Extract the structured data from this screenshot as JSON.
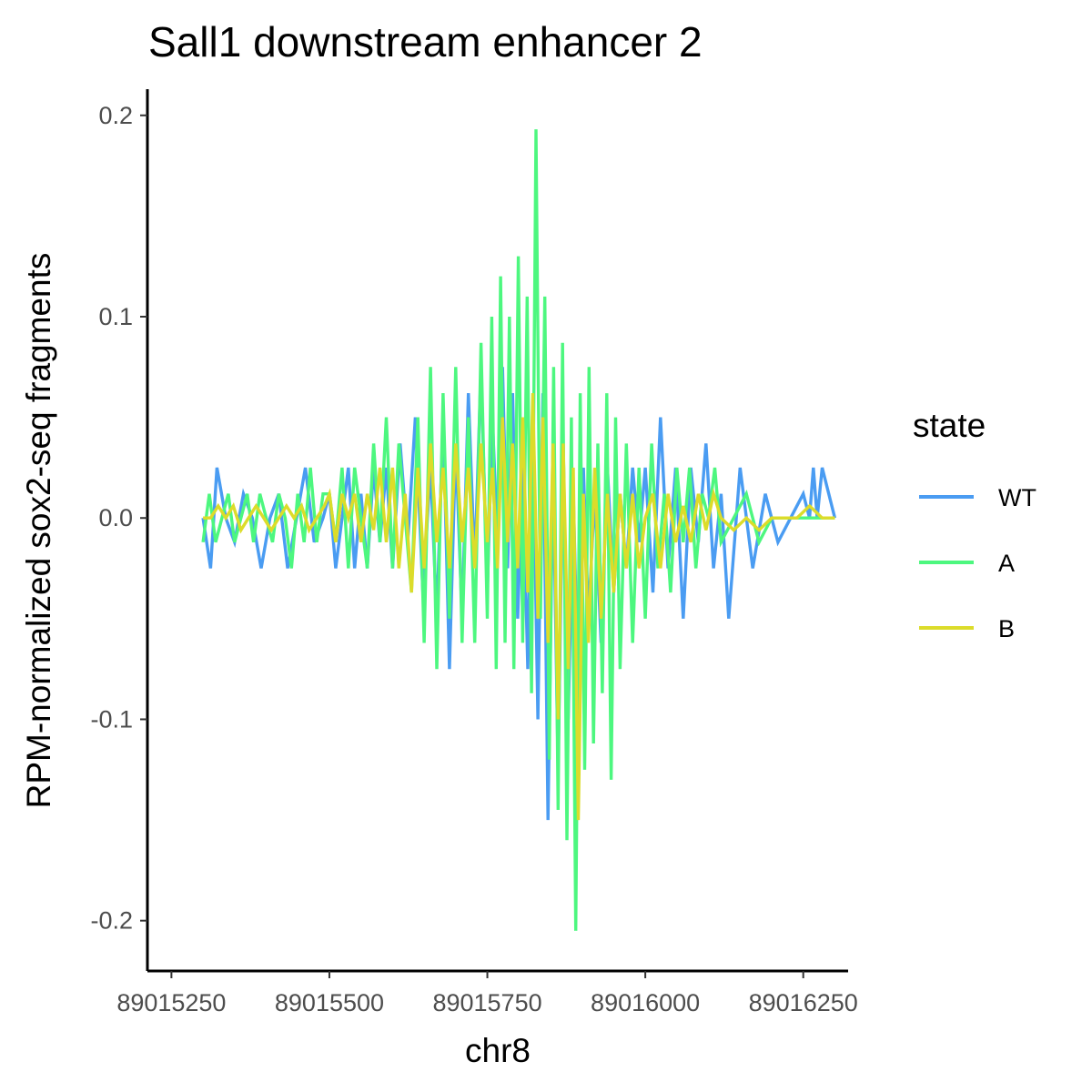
{
  "chart_data": {
    "type": "line",
    "title": "Sall1 downstream enhancer 2",
    "xlabel": "chr8",
    "ylabel": "RPM-normalized sox2-seq fragments",
    "xlim": [
      89015212,
      89016321
    ],
    "ylim": [
      -0.225,
      0.213
    ],
    "xticks": [
      89015250,
      89015500,
      89015750,
      89016000,
      89016250
    ],
    "xtick_labels": [
      "89015250",
      "89015500",
      "89015750",
      "89016000",
      "89016250"
    ],
    "yticks": [
      -0.2,
      -0.1,
      0.0,
      0.1,
      0.2
    ],
    "ytick_labels": [
      "-0.2",
      "-0.1",
      "0.0",
      "0.1",
      "0.2"
    ],
    "grid": false,
    "legend": {
      "title": "state",
      "position": "right"
    },
    "series_style": [
      {
        "name": "WT",
        "color": "#4a9cf2"
      },
      {
        "name": "A",
        "color": "#4df77f"
      },
      {
        "name": "B",
        "color": "#dcdc2a"
      }
    ],
    "series": [
      {
        "name": "WT",
        "x": [
          89015300,
          89015312,
          89015322,
          89015336,
          89015350,
          89015364,
          89015378,
          89015392,
          89015406,
          89015420,
          89015434,
          89015448,
          89015462,
          89015476,
          89015490,
          89015500,
          89015510,
          89015520,
          89015530,
          89015540,
          89015550,
          89015560,
          89015570,
          89015580,
          89015590,
          89015600,
          89015612,
          89015624,
          89015636,
          89015648,
          89015660,
          89015670,
          89015680,
          89015690,
          89015700,
          89015710,
          89015720,
          89015730,
          89015740,
          89015750,
          89015758,
          89015766,
          89015774,
          89015782,
          89015790,
          89015798,
          89015806,
          89015814,
          89015822,
          89015830,
          89015838,
          89015846,
          89015854,
          89015862,
          89015870,
          89015878,
          89015886,
          89015894,
          89015902,
          89015910,
          89015920,
          89015930,
          89015940,
          89015950,
          89015960,
          89015970,
          89015980,
          89015990,
          89016000,
          89016012,
          89016024,
          89016036,
          89016048,
          89016060,
          89016072,
          89016084,
          89016096,
          89016108,
          89016120,
          89016132,
          89016150,
          89016170,
          89016190,
          89016210,
          89016230,
          89016250,
          89016260,
          89016266,
          89016272,
          89016280,
          89016300
        ],
        "y": [
          0.0,
          -0.025,
          0.025,
          0.0,
          -0.012,
          0.012,
          0.0,
          -0.025,
          0.0,
          0.012,
          -0.025,
          0.0,
          0.025,
          -0.012,
          0.0,
          0.012,
          -0.025,
          0.0,
          0.025,
          -0.025,
          0.012,
          -0.025,
          0.025,
          -0.012,
          0.025,
          -0.025,
          0.037,
          -0.012,
          0.05,
          -0.037,
          0.025,
          -0.05,
          0.05,
          -0.075,
          0.037,
          -0.05,
          0.062,
          -0.025,
          0.075,
          -0.037,
          0.05,
          -0.012,
          0.075,
          -0.025,
          0.062,
          -0.05,
          0.025,
          -0.075,
          0.05,
          -0.1,
          0.062,
          -0.15,
          0.025,
          -0.125,
          0.037,
          -0.1,
          0.012,
          -0.087,
          0.025,
          -0.05,
          0.012,
          -0.062,
          0.025,
          -0.037,
          0.012,
          -0.025,
          0.025,
          -0.012,
          0.025,
          -0.037,
          0.05,
          -0.025,
          0.025,
          -0.05,
          0.025,
          -0.012,
          0.037,
          -0.025,
          0.012,
          -0.05,
          0.025,
          -0.025,
          0.012,
          -0.012,
          0.0,
          0.012,
          0.0,
          0.025,
          0.0,
          0.025,
          0.0
        ]
      },
      {
        "name": "A",
        "x": [
          89015300,
          89015310,
          89015320,
          89015330,
          89015340,
          89015350,
          89015360,
          89015370,
          89015380,
          89015390,
          89015400,
          89015410,
          89015420,
          89015430,
          89015440,
          89015450,
          89015460,
          89015470,
          89015480,
          89015490,
          89015500,
          89015510,
          89015520,
          89015530,
          89015540,
          89015550,
          89015560,
          89015570,
          89015580,
          89015590,
          89015600,
          89015610,
          89015620,
          89015630,
          89015640,
          89015650,
          89015660,
          89015670,
          89015680,
          89015690,
          89015700,
          89015710,
          89015720,
          89015730,
          89015740,
          89015750,
          89015757,
          89015764,
          89015771,
          89015778,
          89015785,
          89015792,
          89015799,
          89015806,
          89015813,
          89015820,
          89015827,
          89015834,
          89015841,
          89015848,
          89015855,
          89015862,
          89015869,
          89015876,
          89015883,
          89015890,
          89015897,
          89015904,
          89015911,
          89015918,
          89015925,
          89015932,
          89015939,
          89015946,
          89015953,
          89015960,
          89015970,
          89015980,
          89015990,
          89016000,
          89016010,
          89016020,
          89016030,
          89016040,
          89016050,
          89016060,
          89016070,
          89016080,
          89016090,
          89016100,
          89016110,
          89016120,
          89016140,
          89016160,
          89016180,
          89016200,
          89016220,
          89016240,
          89016260,
          89016280,
          89016300
        ],
        "y": [
          -0.012,
          0.012,
          -0.012,
          0.0,
          0.012,
          -0.012,
          0.0,
          0.012,
          -0.012,
          0.012,
          0.0,
          -0.012,
          0.012,
          0.0,
          -0.025,
          0.012,
          -0.012,
          0.025,
          -0.012,
          0.012,
          0.012,
          -0.012,
          0.025,
          -0.025,
          0.025,
          0.0,
          -0.025,
          0.037,
          -0.012,
          0.05,
          -0.025,
          0.037,
          0.0,
          -0.037,
          0.05,
          -0.062,
          0.075,
          -0.075,
          0.062,
          -0.05,
          0.075,
          -0.062,
          0.05,
          -0.062,
          0.087,
          -0.05,
          0.1,
          -0.075,
          0.12,
          -0.062,
          0.1,
          -0.075,
          0.13,
          -0.062,
          0.11,
          -0.087,
          0.193,
          -0.05,
          0.11,
          -0.12,
          0.075,
          -0.145,
          0.087,
          -0.16,
          0.05,
          -0.205,
          0.062,
          -0.125,
          0.075,
          -0.112,
          0.037,
          -0.087,
          0.062,
          -0.13,
          0.05,
          -0.075,
          0.037,
          -0.062,
          0.025,
          -0.05,
          0.037,
          -0.025,
          0.012,
          -0.037,
          0.025,
          -0.012,
          0.025,
          -0.025,
          0.012,
          0.0,
          0.025,
          -0.012,
          0.0,
          0.012,
          -0.012,
          0.0,
          0.0,
          0.0,
          0.0,
          0.0,
          0.0
        ]
      },
      {
        "name": "B",
        "x": [
          89015300,
          89015312,
          89015324,
          89015336,
          89015348,
          89015360,
          89015372,
          89015384,
          89015396,
          89015408,
          89015420,
          89015432,
          89015444,
          89015456,
          89015468,
          89015480,
          89015492,
          89015500,
          89015510,
          89015520,
          89015530,
          89015540,
          89015550,
          89015560,
          89015570,
          89015580,
          89015590,
          89015600,
          89015610,
          89015620,
          89015630,
          89015640,
          89015650,
          89015660,
          89015670,
          89015680,
          89015690,
          89015700,
          89015710,
          89015720,
          89015730,
          89015740,
          89015750,
          89015758,
          89015766,
          89015774,
          89015782,
          89015790,
          89015798,
          89015806,
          89015814,
          89015822,
          89015830,
          89015838,
          89015846,
          89015854,
          89015862,
          89015870,
          89015878,
          89015886,
          89015894,
          89015902,
          89015910,
          89015920,
          89015930,
          89015940,
          89015950,
          89015960,
          89015970,
          89015980,
          89015990,
          89016000,
          89016012,
          89016024,
          89016036,
          89016048,
          89016060,
          89016072,
          89016084,
          89016096,
          89016108,
          89016120,
          89016140,
          89016160,
          89016180,
          89016200,
          89016220,
          89016240,
          89016260,
          89016280,
          89016300
        ],
        "y": [
          0.0,
          0.0,
          0.006,
          0.0,
          0.006,
          -0.006,
          0.0,
          0.006,
          0.0,
          -0.006,
          0.0,
          0.006,
          0.0,
          0.006,
          -0.006,
          0.0,
          0.006,
          0.012,
          -0.012,
          0.012,
          0.0,
          0.012,
          -0.012,
          0.012,
          -0.006,
          0.025,
          -0.012,
          0.025,
          -0.025,
          0.012,
          -0.037,
          0.025,
          -0.025,
          0.037,
          -0.012,
          0.025,
          -0.025,
          0.037,
          -0.012,
          0.025,
          -0.025,
          0.037,
          -0.012,
          0.025,
          -0.025,
          0.05,
          -0.012,
          0.037,
          -0.025,
          0.05,
          -0.037,
          0.062,
          -0.05,
          0.05,
          -0.062,
          0.037,
          -0.1,
          0.037,
          -0.075,
          0.025,
          -0.15,
          0.012,
          -0.062,
          0.025,
          -0.05,
          0.012,
          -0.037,
          0.012,
          -0.025,
          0.012,
          -0.025,
          0.0,
          0.012,
          -0.025,
          0.012,
          -0.012,
          0.006,
          -0.012,
          0.012,
          -0.006,
          0.012,
          0.0,
          -0.006,
          0.0,
          -0.006,
          0.0,
          0.0,
          0.0,
          0.006,
          0.0,
          0.0
        ]
      }
    ]
  }
}
